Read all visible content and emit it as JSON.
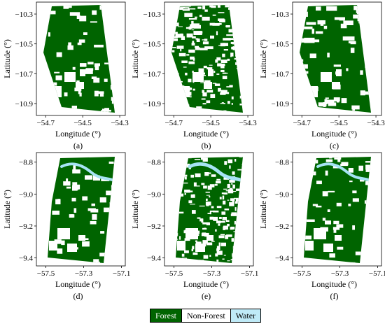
{
  "colors": {
    "forest": "#006400",
    "non_forest": "#ffffff",
    "water": "#a6e3f4",
    "water_light": "#bfeaf7"
  },
  "legend": [
    {
      "label": "Forest",
      "color": "#006400",
      "text_color": "#ffffff"
    },
    {
      "label": "Non-Forest",
      "color": "#ffffff",
      "text_color": "#000000"
    },
    {
      "label": "Water",
      "color": "#bfeaf7",
      "text_color": "#000000"
    }
  ],
  "chart_data": [
    {
      "type": "heatmap",
      "panel_label": "(a)",
      "xlabel": "Longitude (°)",
      "ylabel": "Latitude (°)",
      "xlim": [
        -54.75,
        -54.27
      ],
      "ylim": [
        -10.98,
        -10.22
      ],
      "x_ticks": [
        -54.7,
        -54.5,
        -54.3
      ],
      "x_tick_labels": [
        "−54.7",
        "−54.5",
        "−54.3"
      ],
      "y_ticks": [
        -10.3,
        -10.5,
        -10.7,
        -10.9
      ],
      "y_tick_labels": [
        "−10.3",
        "−10.5",
        "−10.7",
        "−10.9"
      ],
      "classes": [
        "Forest",
        "Non-Forest"
      ],
      "variant": "forest-dense"
    },
    {
      "type": "heatmap",
      "panel_label": "(b)",
      "xlabel": "Longitude (°)",
      "ylabel": "Latitude (°)",
      "xlim": [
        -54.75,
        -54.27
      ],
      "ylim": [
        -10.98,
        -10.22
      ],
      "x_ticks": [
        -54.7,
        -54.5,
        -54.3
      ],
      "x_tick_labels": [
        "−54.7",
        "−54.5",
        "−54.3"
      ],
      "y_ticks": [
        -10.3,
        -10.5,
        -10.7,
        -10.9
      ],
      "y_tick_labels": [
        "−10.3",
        "−10.5",
        "−10.7",
        "−10.9"
      ],
      "classes": [
        "Forest",
        "Non-Forest",
        "Water"
      ],
      "variant": "forest-fragmented"
    },
    {
      "type": "heatmap",
      "panel_label": "(c)",
      "xlabel": "Longitude (°)",
      "ylabel": "Latitude (°)",
      "xlim": [
        -54.75,
        -54.27
      ],
      "ylim": [
        -10.98,
        -10.22
      ],
      "x_ticks": [
        -54.7,
        -54.5,
        -54.3
      ],
      "x_tick_labels": [
        "−54.7",
        "−54.5",
        "−54.3"
      ],
      "y_ticks": [
        -10.3,
        -10.5,
        -10.7,
        -10.9
      ],
      "y_tick_labels": [
        "−10.3",
        "−10.5",
        "−10.7",
        "−10.9"
      ],
      "classes": [
        "Forest",
        "Non-Forest"
      ],
      "variant": "forest-dense"
    },
    {
      "type": "heatmap",
      "panel_label": "(d)",
      "xlabel": "Longitude (°)",
      "ylabel": "Latitude (°)",
      "xlim": [
        -57.55,
        -57.08
      ],
      "ylim": [
        -9.45,
        -8.74
      ],
      "x_ticks": [
        -57.5,
        -57.3,
        -57.1
      ],
      "x_tick_labels": [
        "−57.5",
        "−57.3",
        "−57.1"
      ],
      "y_ticks": [
        -8.8,
        -9.0,
        -9.2,
        -9.4
      ],
      "y_tick_labels": [
        "−8.8",
        "−9.0",
        "−9.2",
        "−9.4"
      ],
      "classes": [
        "Forest",
        "Non-Forest",
        "Water"
      ],
      "variant": "river-dense"
    },
    {
      "type": "heatmap",
      "panel_label": "(e)",
      "xlabel": "Longitude (°)",
      "ylabel": "Latitude (°)",
      "xlim": [
        -57.55,
        -57.08
      ],
      "ylim": [
        -9.45,
        -8.74
      ],
      "x_ticks": [
        -57.5,
        -57.3,
        -57.1
      ],
      "x_tick_labels": [
        "−57.5",
        "−57.3",
        "−57.1"
      ],
      "y_ticks": [
        -8.8,
        -9.0,
        -9.2,
        -9.4
      ],
      "y_tick_labels": [
        "−8.8",
        "−9.0",
        "−9.2",
        "−9.4"
      ],
      "classes": [
        "Forest",
        "Non-Forest",
        "Water"
      ],
      "variant": "river-fragmented"
    },
    {
      "type": "heatmap",
      "panel_label": "(f)",
      "xlabel": "Longitude (°)",
      "ylabel": "Latitude (°)",
      "xlim": [
        -57.55,
        -57.08
      ],
      "ylim": [
        -9.45,
        -8.74
      ],
      "x_ticks": [
        -57.5,
        -57.3,
        -57.1
      ],
      "x_tick_labels": [
        "−57.5",
        "−57.3",
        "−57.1"
      ],
      "y_ticks": [
        -8.8,
        -9.0,
        -9.2,
        -9.4
      ],
      "y_tick_labels": [
        "−8.8",
        "−9.0",
        "−9.2",
        "−9.4"
      ],
      "classes": [
        "Forest",
        "Non-Forest",
        "Water"
      ],
      "variant": "river-dense"
    }
  ]
}
